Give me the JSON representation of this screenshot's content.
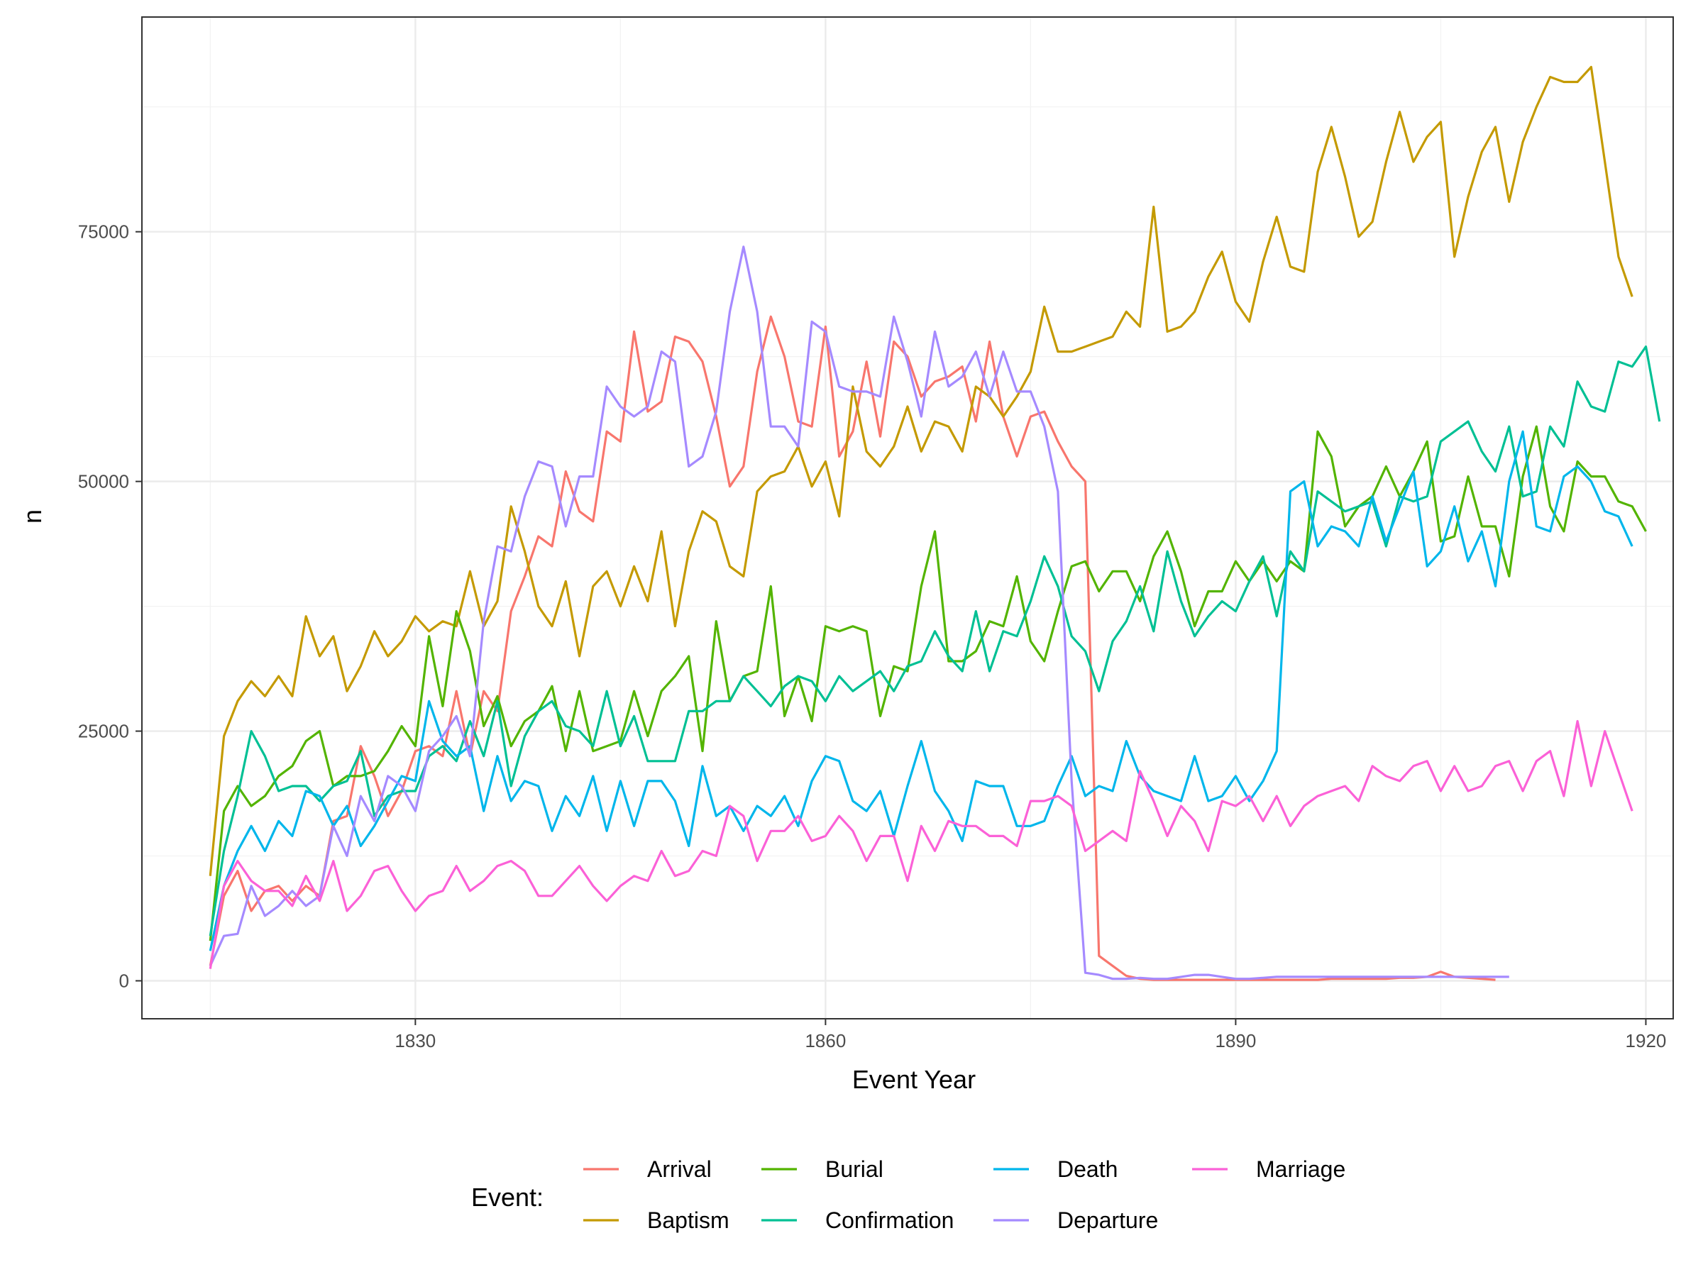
{
  "chart_data": {
    "type": "line",
    "title": "",
    "xlabel": "Event Year",
    "ylabel": "n",
    "x_ticks": [
      1830,
      1860,
      1890,
      1920
    ],
    "y_ticks": [
      0,
      25000,
      50000,
      75000
    ],
    "xlim": [
      1810,
      1922
    ],
    "ylim": [
      -3800,
      96500
    ],
    "grid": true,
    "legend": {
      "title": "Event:",
      "position": "bottom"
    },
    "series": [
      {
        "name": "Arrival",
        "color": "#F8766D",
        "x_start": 1815,
        "values": [
          1500,
          8500,
          11000,
          7000,
          9000,
          9500,
          8000,
          9500,
          8500,
          16000,
          16500,
          23500,
          20500,
          16500,
          19000,
          23000,
          23500,
          22500,
          29000,
          22500,
          29000,
          27000,
          37000,
          40500,
          44500,
          43500,
          51000,
          47000,
          46000,
          55000,
          54000,
          65000,
          57000,
          58000,
          64500,
          64000,
          62000,
          56500,
          49500,
          51500,
          61000,
          66500,
          62500,
          56000,
          55500,
          65500,
          52500,
          55000,
          62000,
          54500,
          64000,
          62500,
          58500,
          60000,
          60500,
          61500,
          56000,
          64000,
          56500,
          52500,
          56500,
          57000,
          54000,
          51500,
          50000,
          2500,
          1500,
          500,
          200,
          100,
          100,
          100,
          100,
          100,
          100,
          100,
          100,
          100,
          100,
          100,
          100,
          100,
          200,
          200,
          200,
          200,
          200,
          300,
          300,
          400,
          900,
          400,
          300,
          200,
          100
        ]
      },
      {
        "name": "Baptism",
        "color": "#C49A00",
        "x_start": 1815,
        "values": [
          10500,
          24500,
          28000,
          30000,
          28500,
          30500,
          28500,
          36500,
          32500,
          34500,
          29000,
          31500,
          35000,
          32500,
          34000,
          36500,
          35000,
          36000,
          35500,
          41000,
          35500,
          38000,
          47500,
          43000,
          37500,
          35500,
          40000,
          32500,
          39500,
          41000,
          37500,
          41500,
          38000,
          45000,
          35500,
          43000,
          47000,
          46000,
          41500,
          40500,
          49000,
          50500,
          51000,
          53500,
          49500,
          52000,
          46500,
          59500,
          53000,
          51500,
          53500,
          57500,
          53000,
          56000,
          55500,
          53000,
          59500,
          58500,
          56500,
          58500,
          61000,
          67500,
          63000,
          63000,
          63500,
          64000,
          64500,
          67000,
          65500,
          77500,
          65000,
          65500,
          67000,
          70500,
          73000,
          68000,
          66000,
          72000,
          76500,
          71500,
          71000,
          81000,
          85500,
          80500,
          74500,
          76000,
          82000,
          87000,
          82000,
          84500,
          86000,
          72500,
          78500,
          83000,
          85500,
          78000,
          84000,
          87500,
          90500,
          90000,
          90000,
          91500,
          82000,
          72500,
          68500
        ]
      },
      {
        "name": "Burial",
        "color": "#53B400",
        "x_start": 1815,
        "values": [
          4000,
          17000,
          19500,
          17500,
          18500,
          20500,
          21500,
          24000,
          25000,
          19500,
          20500,
          20500,
          21000,
          23000,
          25500,
          23500,
          34500,
          27500,
          37000,
          33000,
          25500,
          28500,
          23500,
          26000,
          27000,
          29500,
          23000,
          29000,
          23000,
          23500,
          24000,
          29000,
          24500,
          29000,
          30500,
          32500,
          23000,
          36000,
          28000,
          30500,
          31000,
          39500,
          26500,
          30500,
          26000,
          35500,
          35000,
          35500,
          35000,
          26500,
          31500,
          31000,
          39500,
          45000,
          32000,
          32000,
          33000,
          36000,
          35500,
          40500,
          34000,
          32000,
          37000,
          41500,
          42000,
          39000,
          41000,
          41000,
          38000,
          42500,
          45000,
          41000,
          35500,
          39000,
          39000,
          42000,
          40000,
          42000,
          40000,
          42000,
          41000,
          55000,
          52500,
          45500,
          47500,
          48500,
          51500,
          48500,
          51000,
          54000,
          44000,
          44500,
          50500,
          45500,
          45500,
          40500,
          50500,
          55500,
          47500,
          45000,
          52000,
          50500,
          50500,
          48000,
          47500,
          45000
        ]
      },
      {
        "name": "Confirmation",
        "color": "#00C094",
        "x_start": 1815,
        "values": [
          4500,
          13000,
          18500,
          25000,
          22500,
          19000,
          19500,
          19500,
          18000,
          19500,
          20000,
          23000,
          16500,
          18500,
          19000,
          19000,
          22500,
          23500,
          22000,
          26000,
          22500,
          28000,
          19500,
          24500,
          27000,
          28000,
          25500,
          25000,
          23500,
          29000,
          23500,
          26500,
          22000,
          22000,
          22000,
          27000,
          27000,
          28000,
          28000,
          30500,
          29000,
          27500,
          29500,
          30500,
          30000,
          28000,
          30500,
          29000,
          30000,
          31000,
          29000,
          31500,
          32000,
          35000,
          32500,
          31000,
          37000,
          31000,
          35000,
          34500,
          38000,
          42500,
          39500,
          34500,
          33000,
          29000,
          34000,
          36000,
          39500,
          35000,
          43000,
          38000,
          34500,
          36500,
          38000,
          37000,
          40000,
          42500,
          36500,
          43000,
          41000,
          49000,
          48000,
          47000,
          47500,
          48000,
          43500,
          48500,
          48000,
          48500,
          54000,
          55000,
          56000,
          53000,
          51000,
          55500,
          48500,
          49000,
          55500,
          53500,
          60000,
          57500,
          57000,
          62000,
          61500,
          63500,
          56000
        ]
      },
      {
        "name": "Death",
        "color": "#00B6EB",
        "x_start": 1815,
        "values": [
          3000,
          9500,
          13000,
          15500,
          13000,
          16000,
          14500,
          19000,
          18500,
          15500,
          17500,
          13500,
          15500,
          18000,
          20500,
          20000,
          28000,
          24000,
          22500,
          23500,
          17000,
          22500,
          18000,
          20000,
          19500,
          15000,
          18500,
          16500,
          20500,
          15000,
          20000,
          15500,
          20000,
          20000,
          18000,
          13500,
          21500,
          16500,
          17500,
          15000,
          17500,
          16500,
          18500,
          15500,
          20000,
          22500,
          22000,
          18000,
          17000,
          19000,
          14500,
          19500,
          24000,
          19000,
          17000,
          14000,
          20000,
          19500,
          19500,
          15500,
          15500,
          16000,
          19500,
          22500,
          18500,
          19500,
          19000,
          24000,
          20500,
          19000,
          18500,
          18000,
          22500,
          18000,
          18500,
          20500,
          18000,
          20000,
          23000,
          49000,
          50000,
          43500,
          45500,
          45000,
          43500,
          48500,
          44000,
          47500,
          51000,
          41500,
          43000,
          47500,
          42000,
          45000,
          39500,
          50000,
          55000,
          45500,
          45000,
          50500,
          51500,
          50000,
          47000,
          46500,
          43500
        ]
      },
      {
        "name": "Departure",
        "color": "#A58AFF",
        "x_start": 1815,
        "values": [
          1500,
          4500,
          4700,
          9500,
          6500,
          7500,
          9000,
          7500,
          8500,
          15500,
          12500,
          18500,
          16000,
          20500,
          19500,
          17000,
          23000,
          24500,
          26500,
          22500,
          36000,
          43500,
          43000,
          48500,
          52000,
          51500,
          45500,
          50500,
          50500,
          59500,
          57500,
          56500,
          57500,
          63000,
          62000,
          51500,
          52500,
          57000,
          67000,
          73500,
          67000,
          55500,
          55500,
          53500,
          66000,
          65000,
          59500,
          59000,
          59000,
          58500,
          66500,
          62000,
          56500,
          65000,
          59500,
          60500,
          63000,
          58500,
          63000,
          59000,
          59000,
          55500,
          49000,
          20000,
          800,
          600,
          200,
          200,
          300,
          200,
          200,
          400,
          600,
          600,
          400,
          200,
          200,
          300,
          400,
          400,
          400,
          400,
          400,
          400,
          400,
          400,
          400,
          400,
          400,
          400,
          400,
          400,
          400,
          400,
          400,
          400
        ]
      },
      {
        "name": "Marriage",
        "color": "#FB61D7",
        "x_start": 1815,
        "values": [
          1200,
          9500,
          12000,
          10000,
          9000,
          9000,
          7500,
          10500,
          8000,
          12000,
          7000,
          8500,
          11000,
          11500,
          9000,
          7000,
          8500,
          9000,
          11500,
          9000,
          10000,
          11500,
          12000,
          11000,
          8500,
          8500,
          10000,
          11500,
          9500,
          8000,
          9500,
          10500,
          10000,
          13000,
          10500,
          11000,
          13000,
          12500,
          17500,
          16500,
          12000,
          15000,
          15000,
          16500,
          14000,
          14500,
          16500,
          15000,
          12000,
          14500,
          14500,
          10000,
          15500,
          13000,
          16000,
          15500,
          15500,
          14500,
          14500,
          13500,
          18000,
          18000,
          18500,
          17500,
          13000,
          14000,
          15000,
          14000,
          21000,
          18000,
          14500,
          17500,
          16000,
          13000,
          18000,
          17500,
          18500,
          16000,
          18500,
          15500,
          17500,
          18500,
          19000,
          19500,
          18000,
          21500,
          20500,
          20000,
          21500,
          22000,
          19000,
          21500,
          19000,
          19500,
          21500,
          22000,
          19000,
          22000,
          23000,
          18500,
          26000,
          19500,
          25000,
          21000,
          17000
        ]
      }
    ]
  }
}
